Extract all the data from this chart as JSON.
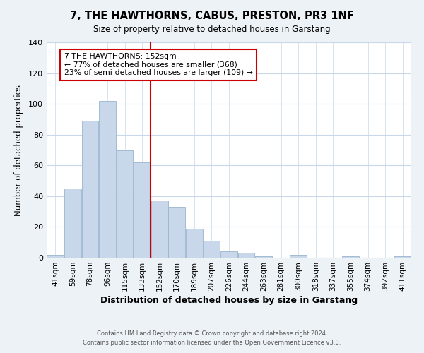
{
  "title": "7, THE HAWTHORNS, CABUS, PRESTON, PR3 1NF",
  "subtitle": "Size of property relative to detached houses in Garstang",
  "xlabel": "Distribution of detached houses by size in Garstang",
  "ylabel": "Number of detached properties",
  "bar_labels": [
    "41sqm",
    "59sqm",
    "78sqm",
    "96sqm",
    "115sqm",
    "133sqm",
    "152sqm",
    "170sqm",
    "189sqm",
    "207sqm",
    "226sqm",
    "244sqm",
    "263sqm",
    "281sqm",
    "300sqm",
    "318sqm",
    "337sqm",
    "355sqm",
    "374sqm",
    "392sqm",
    "411sqm"
  ],
  "bar_values": [
    2,
    45,
    89,
    102,
    70,
    62,
    37,
    33,
    19,
    11,
    4,
    3,
    1,
    0,
    2,
    0,
    0,
    1,
    0,
    0,
    1
  ],
  "bar_color": "#c8d8ea",
  "bar_edge_color": "#9ab5cc",
  "highlight_index": 6,
  "highlight_line_color": "#cc0000",
  "annotation_title": "7 THE HAWTHORNS: 152sqm",
  "annotation_line1": "← 77% of detached houses are smaller (368)",
  "annotation_line2": "23% of semi-detached houses are larger (109) →",
  "annotation_box_color": "#ffffff",
  "annotation_box_edge_color": "#cc0000",
  "ylim": [
    0,
    140
  ],
  "yticks": [
    0,
    20,
    40,
    60,
    80,
    100,
    120,
    140
  ],
  "footer_line1": "Contains HM Land Registry data © Crown copyright and database right 2024.",
  "footer_line2": "Contains public sector information licensed under the Open Government Licence v3.0.",
  "background_color": "#edf2f7",
  "plot_background_color": "#ffffff",
  "grid_color": "#c8d8e8"
}
